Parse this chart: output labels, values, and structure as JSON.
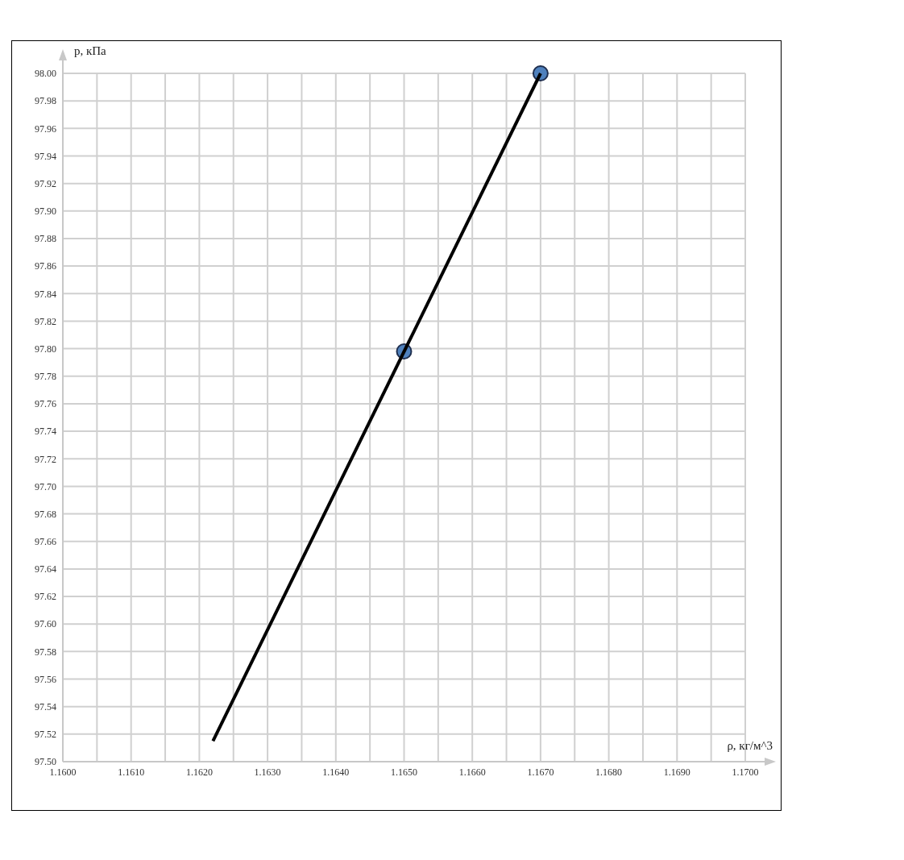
{
  "chart_data": {
    "type": "scatter",
    "xlabel": "ρ, кг/м^3",
    "ylabel": "p, кПа",
    "xlim": [
      1.16,
      1.17
    ],
    "ylim": [
      97.5,
      98.0
    ],
    "xticks": [
      {
        "value": 1.16,
        "label": "1.1600"
      },
      {
        "value": 1.1605,
        "label": null
      },
      {
        "value": 1.161,
        "label": "1.1610"
      },
      {
        "value": 1.1615,
        "label": null
      },
      {
        "value": 1.162,
        "label": "1.1620"
      },
      {
        "value": 1.1625,
        "label": null
      },
      {
        "value": 1.163,
        "label": "1.1630"
      },
      {
        "value": 1.1635,
        "label": null
      },
      {
        "value": 1.164,
        "label": "1.1640"
      },
      {
        "value": 1.1645,
        "label": null
      },
      {
        "value": 1.165,
        "label": "1.1650"
      },
      {
        "value": 1.1655,
        "label": null
      },
      {
        "value": 1.166,
        "label": "1.1660"
      },
      {
        "value": 1.1665,
        "label": null
      },
      {
        "value": 1.167,
        "label": "1.1670"
      },
      {
        "value": 1.1675,
        "label": null
      },
      {
        "value": 1.168,
        "label": "1.1680"
      },
      {
        "value": 1.1685,
        "label": null
      },
      {
        "value": 1.169,
        "label": "1.1690"
      },
      {
        "value": 1.1695,
        "label": null
      },
      {
        "value": 1.17,
        "label": "1.1700"
      }
    ],
    "yticks": [
      {
        "value": 97.5,
        "label": "97.50"
      },
      {
        "value": 97.52,
        "label": "97.52"
      },
      {
        "value": 97.54,
        "label": "97.54"
      },
      {
        "value": 97.56,
        "label": "97.56"
      },
      {
        "value": 97.58,
        "label": "97.58"
      },
      {
        "value": 97.6,
        "label": "97.60"
      },
      {
        "value": 97.62,
        "label": "97.62"
      },
      {
        "value": 97.64,
        "label": "97.64"
      },
      {
        "value": 97.66,
        "label": "97.66"
      },
      {
        "value": 97.68,
        "label": "97.68"
      },
      {
        "value": 97.7,
        "label": "97.70"
      },
      {
        "value": 97.72,
        "label": "97.72"
      },
      {
        "value": 97.74,
        "label": "97.74"
      },
      {
        "value": 97.76,
        "label": "97.76"
      },
      {
        "value": 97.78,
        "label": "97.78"
      },
      {
        "value": 97.8,
        "label": "97.80"
      },
      {
        "value": 97.82,
        "label": "97.82"
      },
      {
        "value": 97.84,
        "label": "97.84"
      },
      {
        "value": 97.86,
        "label": "97.86"
      },
      {
        "value": 97.88,
        "label": "97.88"
      },
      {
        "value": 97.9,
        "label": "97.90"
      },
      {
        "value": 97.92,
        "label": "97.92"
      },
      {
        "value": 97.94,
        "label": "97.94"
      },
      {
        "value": 97.96,
        "label": "97.96"
      },
      {
        "value": 97.98,
        "label": "97.98"
      },
      {
        "value": 98.0,
        "label": "98.00"
      }
    ],
    "grid": true,
    "series": [
      {
        "type": "scatter",
        "color": "#4f81bd",
        "marker": "circle",
        "x": [
          1.165,
          1.167
        ],
        "values": [
          97.798,
          98.0
        ]
      },
      {
        "type": "line",
        "color": "#000000",
        "marker": "none",
        "x": [
          1.1622,
          1.167
        ],
        "values": [
          97.515,
          98.0
        ]
      }
    ]
  }
}
